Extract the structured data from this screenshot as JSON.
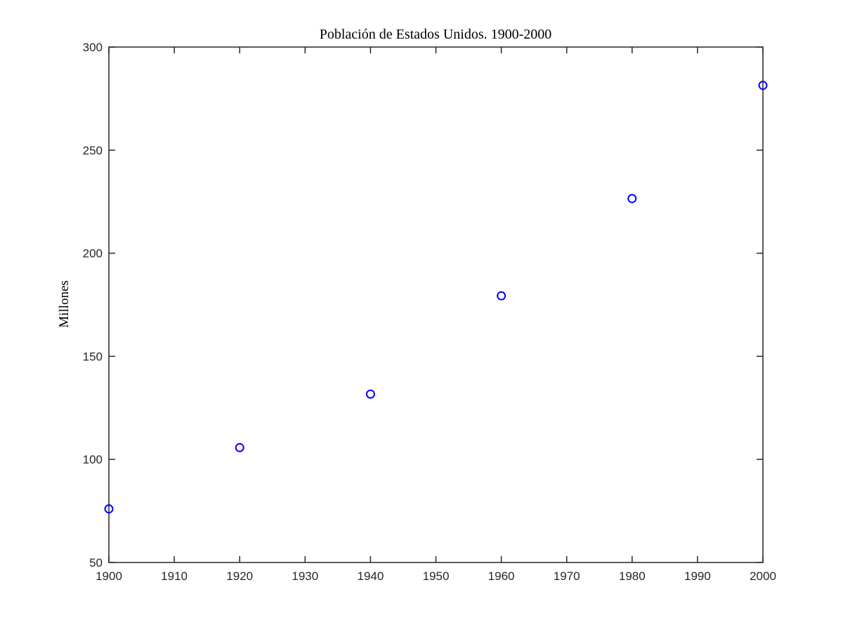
{
  "chart_data": {
    "type": "scatter",
    "title": "Población de Estados Unidos. 1900-2000",
    "xlabel": "",
    "ylabel": "Millones",
    "xlim": [
      1900,
      2000
    ],
    "ylim": [
      50,
      300
    ],
    "x_ticks": [
      1900,
      1910,
      1920,
      1930,
      1940,
      1950,
      1960,
      1970,
      1980,
      1990,
      2000
    ],
    "y_ticks": [
      50,
      100,
      150,
      200,
      250,
      300
    ],
    "grid": false,
    "marker": "circle",
    "marker_color": "#0000ff",
    "x": [
      1900,
      1920,
      1940,
      1960,
      1980,
      2000
    ],
    "y": [
      75.995,
      105.711,
      131.669,
      179.323,
      226.505,
      281.422
    ]
  }
}
